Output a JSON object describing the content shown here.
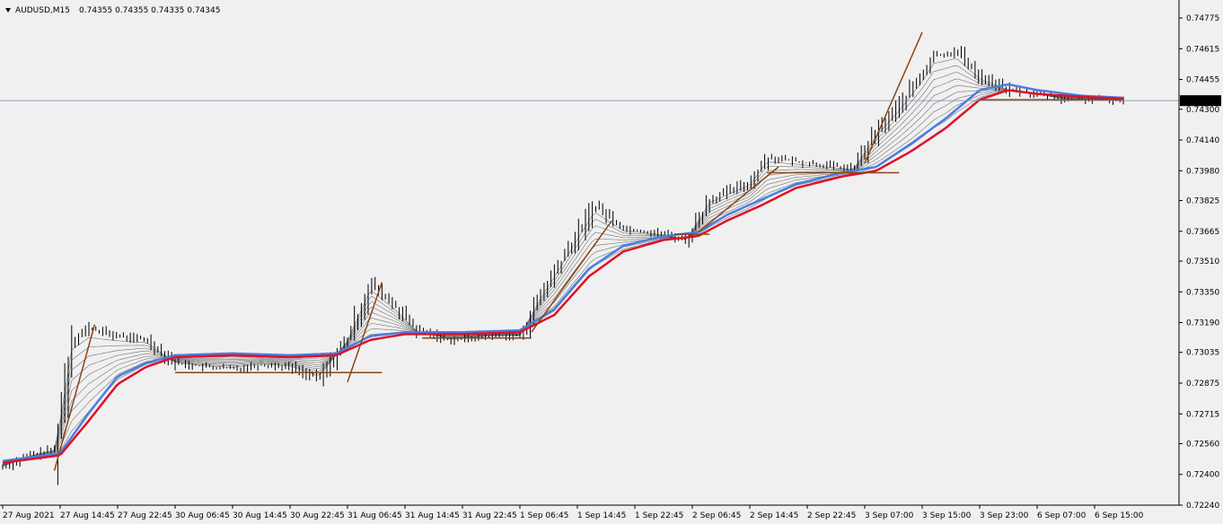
{
  "window": {
    "symbol_label": "AUDUSD,M15",
    "ohlc_text": "0.74355 0.74355 0.74335 0.74345",
    "dropdown_icon": "triangle-down-icon"
  },
  "colors": {
    "background": "#f0f0f0",
    "axis": "#000000",
    "candle": "#000000",
    "ema_fan": "#555555",
    "ema_blue": "#4a7fe0",
    "ema_red": "#e0102a",
    "trendline": "#8b4513",
    "price_line": "#6a8ab0",
    "price_label_bg": "#000000",
    "price_label_fg": "#ffffff"
  },
  "chart_data": {
    "type": "line",
    "title": "AUDUSD,M15",
    "current_price": 0.74345,
    "current_price_label": "0.74345",
    "ylim": [
      0.7224,
      0.7485
    ],
    "y_ticks": [
      {
        "value": 0.7224,
        "label": "0.72240"
      },
      {
        "value": 0.724,
        "label": "0.72400"
      },
      {
        "value": 0.7256,
        "label": "0.72560"
      },
      {
        "value": 0.72715,
        "label": "0.72715"
      },
      {
        "value": 0.72875,
        "label": "0.72875"
      },
      {
        "value": 0.73035,
        "label": "0.73035"
      },
      {
        "value": 0.7319,
        "label": "0.73190"
      },
      {
        "value": 0.7335,
        "label": "0.73350"
      },
      {
        "value": 0.7351,
        "label": "0.73510"
      },
      {
        "value": 0.73665,
        "label": "0.73665"
      },
      {
        "value": 0.73825,
        "label": "0.73825"
      },
      {
        "value": 0.7398,
        "label": "0.73980"
      },
      {
        "value": 0.7414,
        "label": "0.74140"
      },
      {
        "value": 0.743,
        "label": "0.74300"
      },
      {
        "value": 0.74455,
        "label": "0.74455"
      },
      {
        "value": 0.74615,
        "label": "0.74615"
      },
      {
        "value": 0.74775,
        "label": "0.74775"
      }
    ],
    "x_ticks": [
      {
        "index": 0,
        "label": "27 Aug 2021"
      },
      {
        "index": 1,
        "label": "27 Aug 14:45"
      },
      {
        "index": 2,
        "label": "27 Aug 22:45"
      },
      {
        "index": 3,
        "label": "30 Aug 06:45"
      },
      {
        "index": 4,
        "label": "30 Aug 14:45"
      },
      {
        "index": 5,
        "label": "30 Aug 22:45"
      },
      {
        "index": 6,
        "label": "31 Aug 06:45"
      },
      {
        "index": 7,
        "label": "31 Aug 14:45"
      },
      {
        "index": 8,
        "label": "31 Aug 22:45"
      },
      {
        "index": 9,
        "label": "1 Sep 06:45"
      },
      {
        "index": 10,
        "label": "1 Sep 14:45"
      },
      {
        "index": 11,
        "label": "1 Sep 22:45"
      },
      {
        "index": 12,
        "label": "2 Sep 06:45"
      },
      {
        "index": 13,
        "label": "2 Sep 14:45"
      },
      {
        "index": 14,
        "label": "2 Sep 22:45"
      },
      {
        "index": 15,
        "label": "3 Sep 07:00"
      },
      {
        "index": 16,
        "label": "3 Sep 15:00"
      },
      {
        "index": 17,
        "label": "3 Sep 23:00"
      },
      {
        "index": 18,
        "label": "6 Sep 07:00"
      },
      {
        "index": 19,
        "label": "6 Sep 15:00"
      }
    ],
    "price_path": [
      [
        0,
        0.7244
      ],
      [
        0.5,
        0.725
      ],
      [
        0.9,
        0.7253
      ],
      [
        1.0,
        0.727
      ],
      [
        1.2,
        0.731
      ],
      [
        1.5,
        0.7316
      ],
      [
        2.0,
        0.7312
      ],
      [
        2.5,
        0.731
      ],
      [
        3.0,
        0.7298
      ],
      [
        3.5,
        0.7296
      ],
      [
        4.0,
        0.7295
      ],
      [
        4.5,
        0.7297
      ],
      [
        5.0,
        0.7296
      ],
      [
        5.5,
        0.729
      ],
      [
        6.0,
        0.731
      ],
      [
        6.4,
        0.7339
      ],
      [
        6.8,
        0.7328
      ],
      [
        7.2,
        0.7315
      ],
      [
        7.8,
        0.731
      ],
      [
        8.5,
        0.7312
      ],
      [
        9.0,
        0.7312
      ],
      [
        9.4,
        0.7335
      ],
      [
        10.0,
        0.7365
      ],
      [
        10.3,
        0.738
      ],
      [
        10.8,
        0.7368
      ],
      [
        11.5,
        0.7365
      ],
      [
        11.9,
        0.7362
      ],
      [
        12.3,
        0.7383
      ],
      [
        13.0,
        0.7392
      ],
      [
        13.3,
        0.7405
      ],
      [
        14.0,
        0.7402
      ],
      [
        14.8,
        0.7399
      ],
      [
        15.2,
        0.7418
      ],
      [
        15.6,
        0.7432
      ],
      [
        16.0,
        0.7448
      ],
      [
        16.2,
        0.7458
      ],
      [
        16.6,
        0.746
      ],
      [
        17.0,
        0.7447
      ],
      [
        17.5,
        0.744
      ],
      [
        18.0,
        0.7438
      ],
      [
        18.5,
        0.7435
      ],
      [
        19.0,
        0.7435
      ],
      [
        19.5,
        0.74345
      ]
    ],
    "ema_red": [
      [
        0,
        0.7246
      ],
      [
        1.0,
        0.725
      ],
      [
        1.5,
        0.7268
      ],
      [
        2.0,
        0.7287
      ],
      [
        2.5,
        0.7296
      ],
      [
        3.0,
        0.7301
      ],
      [
        4.0,
        0.7302
      ],
      [
        5.0,
        0.7301
      ],
      [
        5.8,
        0.7302
      ],
      [
        6.4,
        0.731
      ],
      [
        7.0,
        0.7313
      ],
      [
        8.0,
        0.7313
      ],
      [
        9.0,
        0.7314
      ],
      [
        9.6,
        0.7323
      ],
      [
        10.2,
        0.7343
      ],
      [
        10.8,
        0.7356
      ],
      [
        11.5,
        0.7362
      ],
      [
        12.1,
        0.7364
      ],
      [
        12.6,
        0.7372
      ],
      [
        13.2,
        0.738
      ],
      [
        13.8,
        0.7389
      ],
      [
        14.6,
        0.7395
      ],
      [
        15.2,
        0.7398
      ],
      [
        15.8,
        0.7408
      ],
      [
        16.4,
        0.742
      ],
      [
        17.0,
        0.7435
      ],
      [
        17.5,
        0.744
      ],
      [
        18.0,
        0.7438
      ],
      [
        18.8,
        0.74365
      ],
      [
        19.5,
        0.74355
      ]
    ],
    "ema_blue": [
      [
        0,
        0.7247
      ],
      [
        1.0,
        0.7251
      ],
      [
        1.5,
        0.7272
      ],
      [
        2.0,
        0.7291
      ],
      [
        2.5,
        0.7298
      ],
      [
        3.0,
        0.7302
      ],
      [
        4.0,
        0.7303
      ],
      [
        5.0,
        0.7302
      ],
      [
        5.8,
        0.7303
      ],
      [
        6.4,
        0.7312
      ],
      [
        7.0,
        0.7314
      ],
      [
        8.0,
        0.7314
      ],
      [
        9.0,
        0.7315
      ],
      [
        9.6,
        0.7326
      ],
      [
        10.2,
        0.7347
      ],
      [
        10.8,
        0.7359
      ],
      [
        11.5,
        0.7364
      ],
      [
        12.1,
        0.7366
      ],
      [
        12.6,
        0.7375
      ],
      [
        13.2,
        0.7383
      ],
      [
        13.8,
        0.7391
      ],
      [
        14.6,
        0.7397
      ],
      [
        15.2,
        0.74
      ],
      [
        15.8,
        0.7412
      ],
      [
        16.4,
        0.7425
      ],
      [
        17.0,
        0.744
      ],
      [
        17.5,
        0.7443
      ],
      [
        18.0,
        0.744
      ],
      [
        18.8,
        0.7437
      ],
      [
        19.5,
        0.7436
      ]
    ],
    "trendlines": [
      [
        [
          0.9,
          0.7242
        ],
        [
          1.6,
          0.7318
        ]
      ],
      [
        [
          3.0,
          0.7293
        ],
        [
          6.6,
          0.7293
        ]
      ],
      [
        [
          6.0,
          0.7288
        ],
        [
          6.6,
          0.734
        ]
      ],
      [
        [
          7.3,
          0.7311
        ],
        [
          9.2,
          0.7311
        ]
      ],
      [
        [
          9.2,
          0.7314
        ],
        [
          10.6,
          0.7372
        ]
      ],
      [
        [
          11.7,
          0.7365
        ],
        [
          12.3,
          0.7365
        ]
      ],
      [
        [
          12.1,
          0.7366
        ],
        [
          13.5,
          0.74
        ]
      ],
      [
        [
          13.3,
          0.7397
        ],
        [
          15.6,
          0.7397
        ]
      ],
      [
        [
          15.0,
          0.7402
        ],
        [
          16.0,
          0.747
        ]
      ],
      [
        [
          17.0,
          0.7435
        ],
        [
          19.5,
          0.7435
        ]
      ]
    ]
  }
}
